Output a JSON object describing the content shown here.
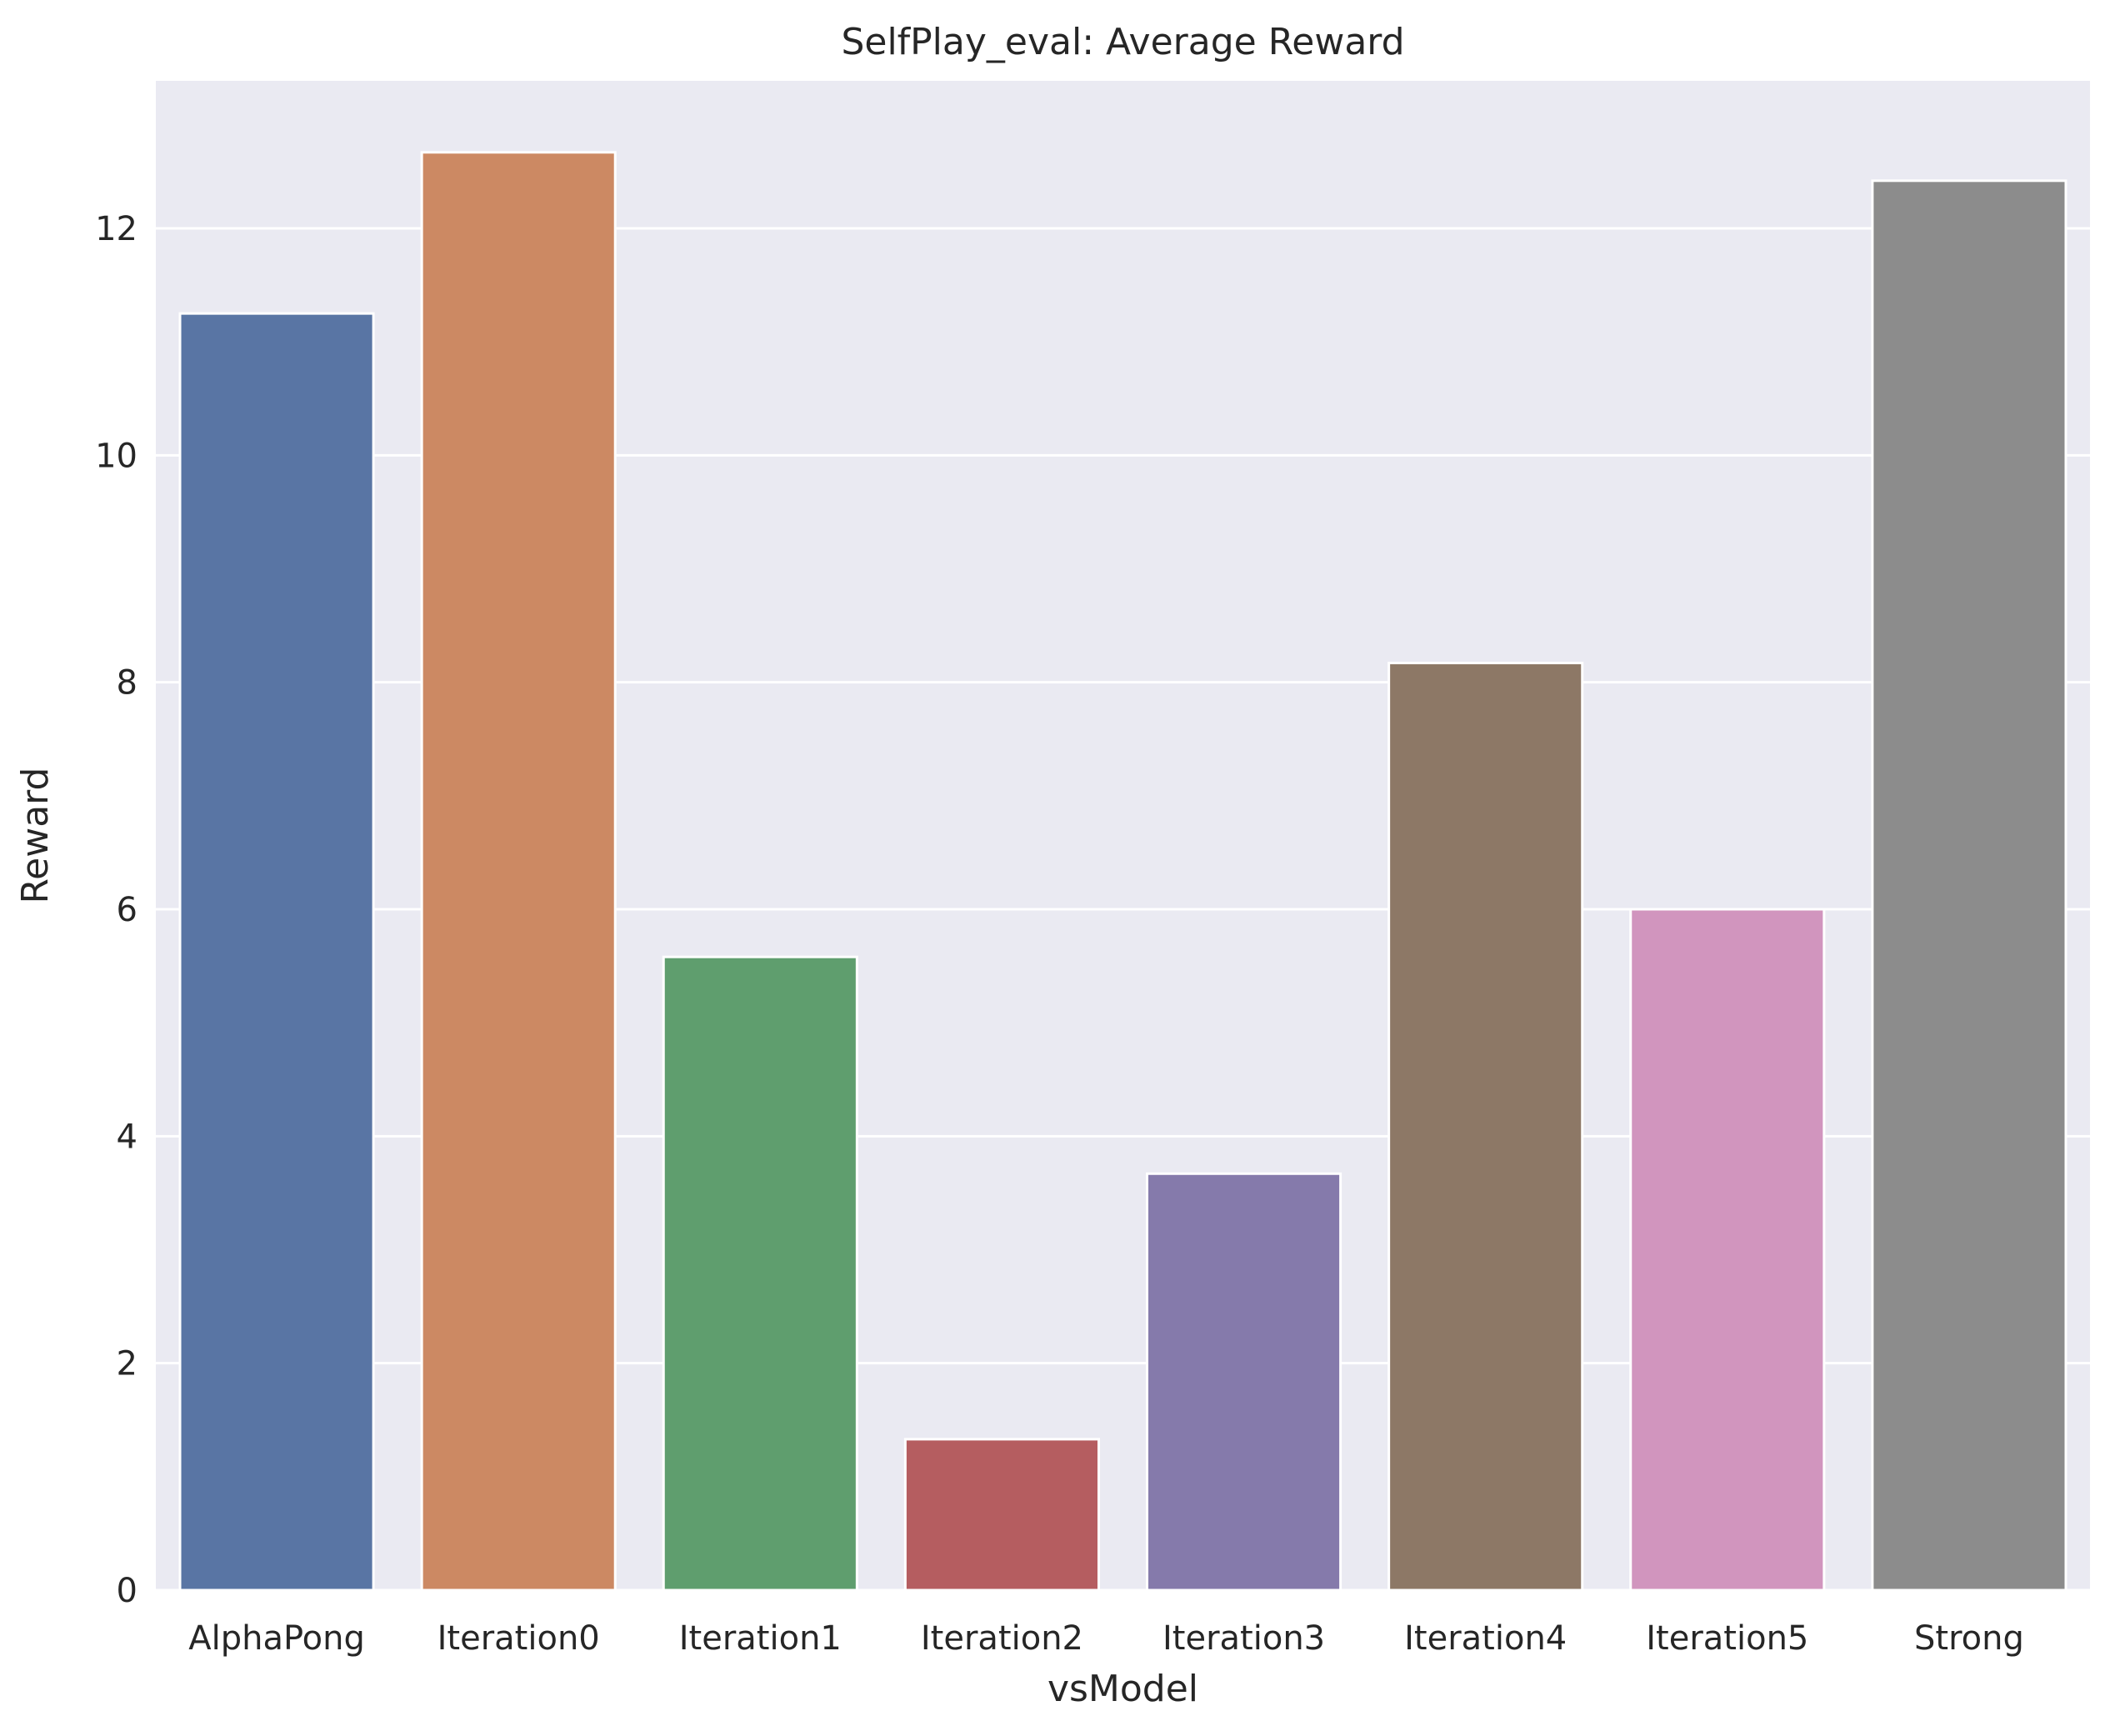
{
  "chart_data": {
    "type": "bar",
    "title": "SelfPlay_eval: Average Reward",
    "xlabel": "vsModel",
    "ylabel": "Reward",
    "categories": [
      "AlphaPong",
      "Iteration0",
      "Iteration1",
      "Iteration2",
      "Iteration3",
      "Iteration4",
      "Iteration5",
      "Strong"
    ],
    "values": [
      11.25,
      12.67,
      5.58,
      1.33,
      3.67,
      8.17,
      6.0,
      12.42
    ],
    "colors": [
      "#5975a4",
      "#cc8963",
      "#5f9e6e",
      "#b55d60",
      "#857aab",
      "#8d7866",
      "#d195be",
      "#8c8c8c"
    ],
    "ylim": [
      0,
      13.3
    ],
    "yticks": [
      0,
      2,
      4,
      6,
      8,
      10,
      12
    ],
    "grid": true,
    "background": "#eaeaf2",
    "grid_color": "#ffffff"
  }
}
